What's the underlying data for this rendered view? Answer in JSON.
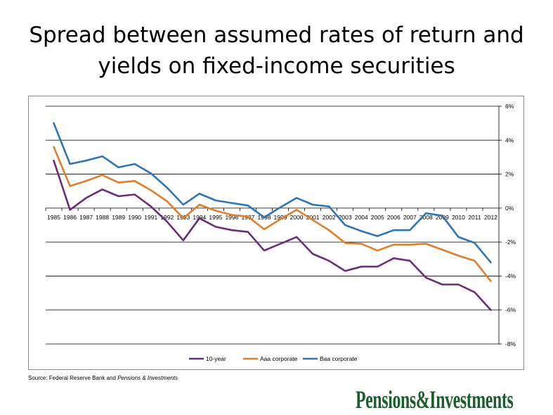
{
  "title_line1": "Spread between assumed rates of return and",
  "title_line2": "yields on fixed-income securities",
  "source_prefix": "Source: Federal Reserve Bank and ",
  "source_italic": "Pensions & Investments",
  "logo_text": "Pensions&Investments",
  "logo_color": "#1b5e2c",
  "chart_data": {
    "type": "line",
    "title": "",
    "xlabel": "",
    "ylabel": "",
    "y_axis_position": "right",
    "ylim": [
      -8,
      6
    ],
    "y_ticks": [
      6,
      4,
      2,
      0,
      -2,
      -4,
      -6,
      -8
    ],
    "y_tick_labels": [
      "6%",
      "4%",
      "2%",
      "0%",
      "-2%",
      "-4%",
      "-6%",
      "-8%"
    ],
    "grid": true,
    "legend_position": "bottom",
    "categories": [
      "1985",
      "1986",
      "1987",
      "1988",
      "1989",
      "1990",
      "1991",
      "1992",
      "1993",
      "1994",
      "1995",
      "1996",
      "1997",
      "1998",
      "1999",
      "2000",
      "2001",
      "2002",
      "2003",
      "2004",
      "2005",
      "2006",
      "2007",
      "2008",
      "2009",
      "2010",
      "2011",
      "2012"
    ],
    "series": [
      {
        "name": "10-year",
        "color": "#6b2d7b",
        "values": [
          2.8,
          -0.1,
          0.6,
          1.1,
          0.7,
          0.8,
          0.1,
          -0.8,
          -1.9,
          -0.6,
          -1.1,
          -1.3,
          -1.4,
          -2.5,
          -2.1,
          -1.7,
          -2.7,
          -3.1,
          -3.7,
          -3.45,
          -3.45,
          -2.95,
          -3.1,
          -4.1,
          -4.5,
          -4.5,
          -4.95,
          -6.0
        ]
      },
      {
        "name": "Aaa corporate",
        "color": "#e07e2b",
        "values": [
          3.6,
          1.3,
          1.6,
          1.95,
          1.5,
          1.6,
          1.05,
          0.4,
          -0.6,
          0.2,
          -0.15,
          -0.4,
          -0.5,
          -1.25,
          -0.65,
          -0.1,
          -0.7,
          -1.3,
          -2.05,
          -2.1,
          -2.5,
          -2.15,
          -2.15,
          -2.1,
          -2.45,
          -2.8,
          -3.1,
          -4.3
        ]
      },
      {
        "name": "Baa corporate",
        "color": "#2e75b6",
        "values": [
          5.0,
          2.6,
          2.8,
          3.05,
          2.4,
          2.6,
          2.05,
          1.2,
          0.2,
          0.85,
          0.45,
          0.3,
          0.15,
          -0.55,
          0.05,
          0.6,
          0.2,
          0.1,
          -1.0,
          -1.35,
          -1.65,
          -1.3,
          -1.3,
          -0.3,
          -0.45,
          -1.7,
          -2.05,
          -3.2
        ]
      }
    ]
  }
}
